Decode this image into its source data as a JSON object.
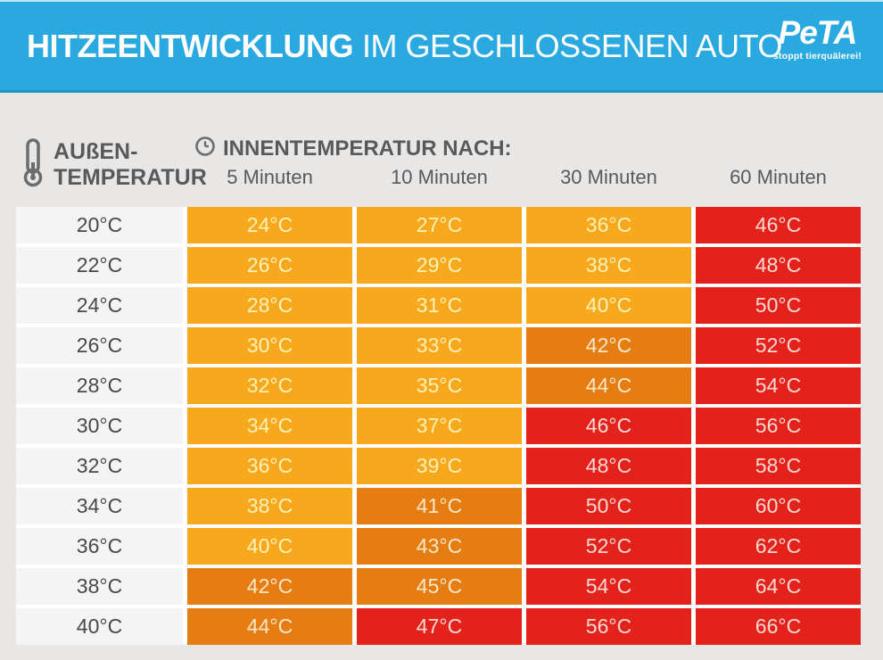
{
  "banner": {
    "title_bold": "HITZEENTWICKLUNG",
    "title_regular": "IM GESCHLOSSENEN AUTO",
    "logo_text": "PeTA",
    "logo_tagline": "stoppt tierquälerei!",
    "background_color": "#29a9e0"
  },
  "table": {
    "outside_label_line1": "AUßEN-",
    "outside_label_line2": "TEMPERATUR",
    "inner_header": "INNENTEMPERATUR NACH:",
    "columns": [
      "5 Minuten",
      "10 Minuten",
      "30 Minuten",
      "60 Minuten"
    ],
    "unit": "°C",
    "color_scale": {
      "amber": {
        "max": 40,
        "bg": "#f8a81c",
        "text": "#fcf2b8"
      },
      "orange": {
        "max": 45,
        "bg": "#e57d12",
        "text": "#fae7c8"
      },
      "red": {
        "max": 999,
        "bg": "#e3221c",
        "text": "#fad9d4"
      }
    },
    "label_cell_bg": "#f5f4f4",
    "label_cell_text": "#48484a"
  },
  "chart_data": {
    "type": "heatmap",
    "title": "HITZEENTWICKLUNG IM GESCHLOSSENEN AUTO",
    "row_axis_label": "AUßEN-TEMPERATUR",
    "col_axis_label": "INNENTEMPERATUR NACH:",
    "columns": [
      "5 Minuten",
      "10 Minuten",
      "30 Minuten",
      "60 Minuten"
    ],
    "rows_c": [
      20,
      22,
      24,
      26,
      28,
      30,
      32,
      34,
      36,
      38,
      40
    ],
    "values_c": [
      [
        24,
        27,
        36,
        46
      ],
      [
        26,
        29,
        38,
        48
      ],
      [
        28,
        31,
        40,
        50
      ],
      [
        30,
        33,
        42,
        52
      ],
      [
        32,
        35,
        44,
        54
      ],
      [
        34,
        37,
        46,
        56
      ],
      [
        36,
        39,
        48,
        58
      ],
      [
        38,
        41,
        50,
        60
      ],
      [
        40,
        43,
        52,
        62
      ],
      [
        42,
        45,
        54,
        64
      ],
      [
        44,
        47,
        56,
        66
      ]
    ],
    "unit": "°C",
    "color_bins": [
      {
        "range": "<=40",
        "color": "#f8a81c"
      },
      {
        "range": "41-45",
        "color": "#e57d12"
      },
      {
        "range": ">=46",
        "color": "#e3221c"
      }
    ],
    "legend_position": "none",
    "grid": false
  }
}
